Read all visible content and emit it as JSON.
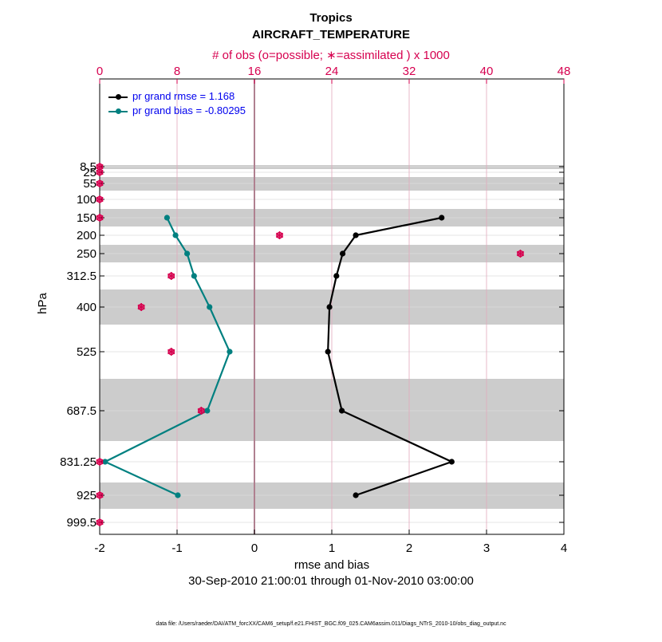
{
  "figure": {
    "title_line1": "Tropics",
    "title_line2": "AIRCRAFT_TEMPERATURE",
    "top_axis_label": "# of obs (o=possible; ∗=assimilated ) x 1000",
    "x_axis_label": "rmse and bias",
    "y_axis_label": "hPa",
    "date_range": "30-Sep-2010 21:00:01 through 01-Nov-2010 03:00:00",
    "footer_note": "data file: /Users/raeder/DAI/ATM_forcXX/CAM6_setup/f.e21.FHIST_BGC.f09_025.CAM6assim.011/Diags_NTrS_2010-10/obs_diag_output.nc"
  },
  "legend": {
    "rmse_label": "pr grand rmse = 1.168",
    "bias_label": "pr grand bias = -0.80295"
  },
  "colors": {
    "rmse": "#000000",
    "bias": "#008080",
    "obs": "#d6004f",
    "legend_text": "#0000ee",
    "band": "#cccccc"
  },
  "chart_data": {
    "type": "line",
    "orientation": "vertical-profile",
    "y_levels": [
      8.5,
      25,
      55,
      100,
      150,
      200,
      250,
      312.5,
      400,
      525,
      687.5,
      831.25,
      925,
      999.5
    ],
    "y_tick_labels": [
      "8.5",
      "25",
      "55",
      "100",
      "150",
      "200",
      "250",
      "312.5",
      "400",
      "525",
      "687.5",
      "831.25",
      "925",
      "999.5"
    ],
    "xlim": [
      -2,
      4
    ],
    "x_ticks": [
      -2,
      -1,
      0,
      1,
      2,
      3,
      4
    ],
    "x_tick_labels": [
      "-2",
      "-1",
      "0",
      "1",
      "2",
      "3",
      "4"
    ],
    "top_xlim": [
      0,
      48
    ],
    "top_ticks": [
      0,
      8,
      16,
      24,
      32,
      40,
      48
    ],
    "top_tick_labels": [
      "0",
      "8",
      "16",
      "24",
      "32",
      "40",
      "48"
    ],
    "grid": true,
    "legend_position": "top-left",
    "series": [
      {
        "name": "pr grand rmse = 1.168",
        "levels": [
          150,
          200,
          250,
          312.5,
          400,
          525,
          687.5,
          831.25,
          925
        ],
        "values": [
          2.42,
          1.31,
          1.14,
          1.06,
          0.97,
          0.95,
          1.13,
          2.55,
          1.31
        ]
      },
      {
        "name": "pr grand bias = -0.80295",
        "levels": [
          150,
          200,
          250,
          312.5,
          400,
          525,
          687.5,
          831.25,
          925
        ],
        "values": [
          -1.13,
          -1.02,
          -0.87,
          -0.78,
          -0.58,
          -0.32,
          -0.61,
          -1.93,
          -0.99
        ]
      }
    ],
    "obs_count_thousands": {
      "levels": [
        8.5,
        25,
        55,
        100,
        150,
        200,
        250,
        312.5,
        400,
        525,
        687.5,
        831.25,
        925,
        999.5
      ],
      "possible": [
        0,
        0,
        0,
        0,
        0,
        18.6,
        43.5,
        7.4,
        4.3,
        7.4,
        10.5,
        0,
        0,
        0
      ],
      "assimilated": [
        0,
        0,
        0,
        0,
        0,
        18.6,
        43.5,
        7.4,
        4.3,
        7.4,
        10.5,
        0,
        0,
        0
      ]
    }
  }
}
